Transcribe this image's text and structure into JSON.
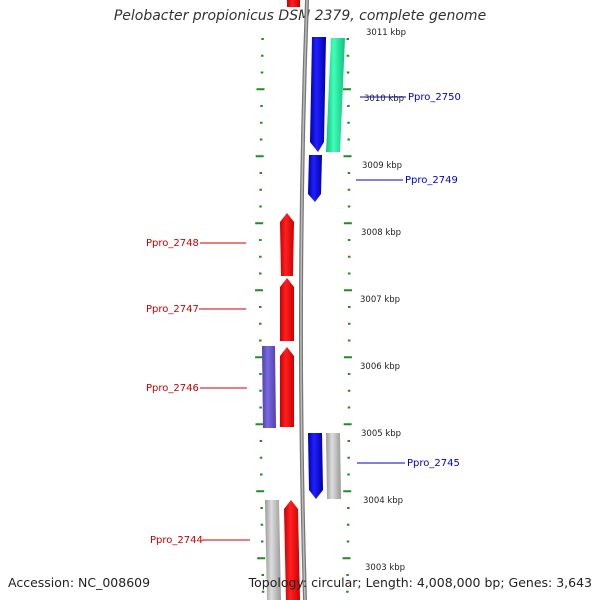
{
  "title": "Pelobacter propionicus DSM 2379, complete genome",
  "accession": "Accession: NC_008609",
  "topology": "Topology: circular; Length: 4,008,000 bp; Genes: 3,643",
  "ticks": [
    "3011 kbp",
    "3010 kbp",
    "3009 kbp",
    "3008 kbp",
    "3007 kbp",
    "3006 kbp",
    "3005 kbp",
    "3004 kbp",
    "3003 kbp"
  ],
  "genes": [
    {
      "name": "Ppro_2750",
      "color": "#0000cc",
      "side": "right"
    },
    {
      "name": "Ppro_2749",
      "color": "#0000cc",
      "side": "right"
    },
    {
      "name": "Ppro_2748",
      "color": "#cc0000",
      "side": "left"
    },
    {
      "name": "Ppro_2747",
      "color": "#cc0000",
      "side": "left"
    },
    {
      "name": "Ppro_2746",
      "color": "#cc0000",
      "side": "left"
    },
    {
      "name": "Ppro_2745",
      "color": "#0000cc",
      "side": "right"
    },
    {
      "name": "Ppro_2744",
      "color": "#cc0000",
      "side": "left"
    }
  ],
  "colors": {
    "forward": "#ff0000",
    "reverse": "#0000ff",
    "green": "#22e8a0",
    "purple": "#6a5acd",
    "grey": "#bbbbbb",
    "backbone": "#808080",
    "tick": "#228b22"
  }
}
